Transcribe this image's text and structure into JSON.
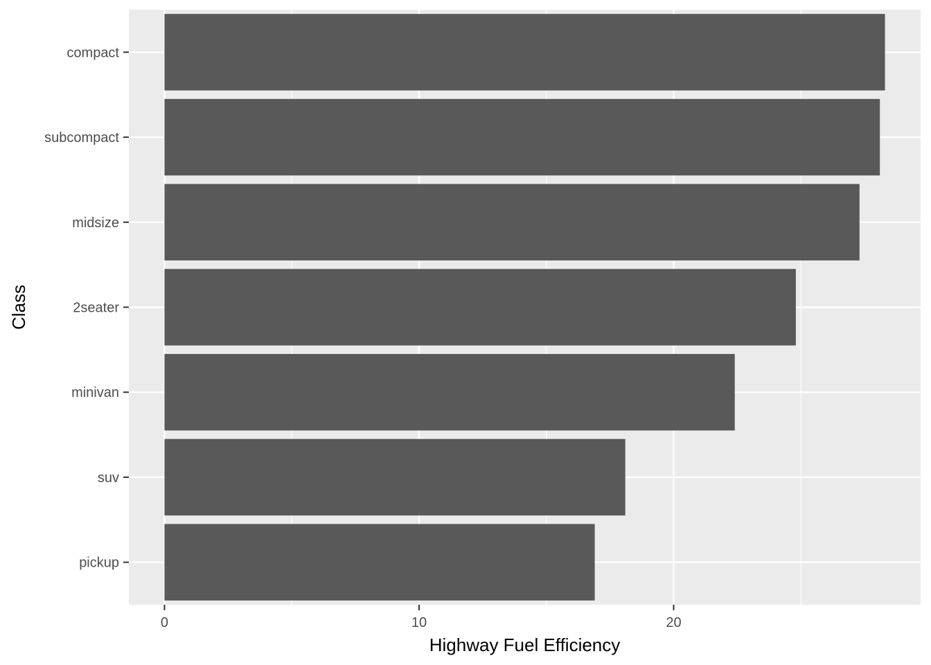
{
  "chart_data": {
    "type": "bar",
    "orientation": "horizontal",
    "categories": [
      "compact",
      "subcompact",
      "midsize",
      "2seater",
      "minivan",
      "suv",
      "pickup"
    ],
    "values": [
      28.3,
      28.1,
      27.3,
      24.8,
      22.4,
      18.1,
      16.9
    ],
    "title": "",
    "xlabel": "Highway Fuel Efficiency",
    "ylabel": "Class",
    "xlim": [
      -1.4,
      29.7
    ],
    "x_ticks": [
      0,
      10,
      20
    ],
    "x_tick_labels": [
      "0",
      "10",
      "20"
    ],
    "grid": true,
    "legend": "none",
    "colors": {
      "bar": "#595959",
      "panel": "#ebebeb",
      "grid": "#ffffff",
      "tick_text": "#4d4d4d",
      "axis_title": "#000000",
      "tick_mark": "#333333"
    }
  }
}
